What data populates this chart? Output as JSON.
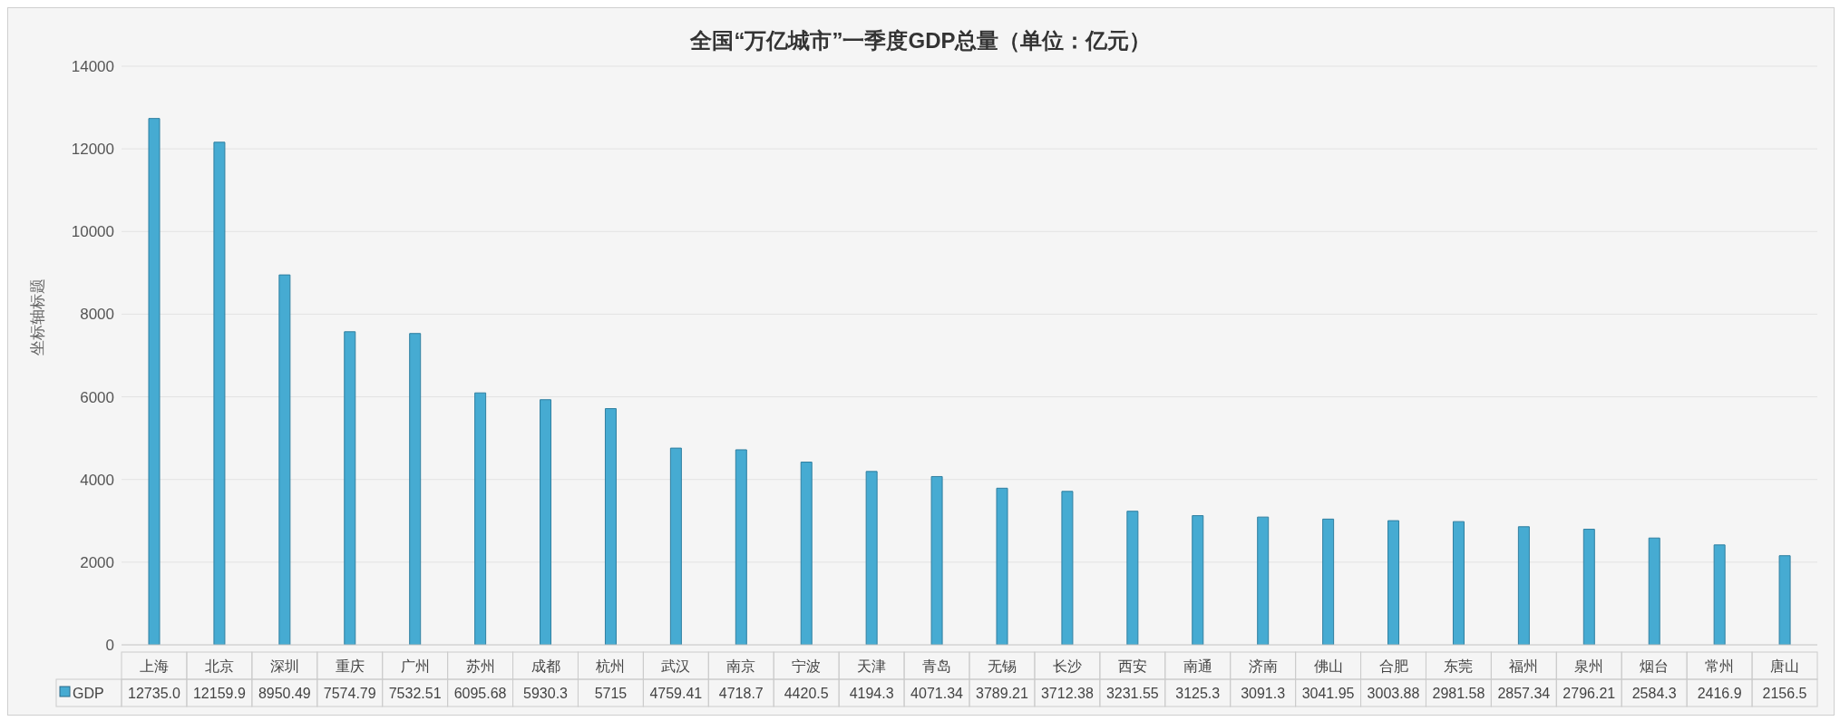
{
  "chart_data": {
    "type": "bar",
    "title": "全国“万亿城市”一季度GDP总量（单位：亿元）",
    "ylabel": "坐标轴标题",
    "categories": [
      "上海",
      "北京",
      "深圳",
      "重庆",
      "广州",
      "苏州",
      "成都",
      "杭州",
      "武汉",
      "南京",
      "宁波",
      "天津",
      "青岛",
      "无锡",
      "长沙",
      "西安",
      "南通",
      "济南",
      "佛山",
      "合肥",
      "东莞",
      "福州",
      "泉州",
      "烟台",
      "常州",
      "唐山"
    ],
    "series": [
      {
        "name": "GDP",
        "color": "#46abd2",
        "values": [
          12735.0,
          12159.9,
          8950.49,
          7574.79,
          7532.51,
          6095.68,
          5930.3,
          5715,
          4759.41,
          4718.7,
          4420.5,
          4194.3,
          4071.34,
          3789.21,
          3712.38,
          3231.55,
          3125.3,
          3091.3,
          3041.95,
          3003.88,
          2981.58,
          2857.34,
          2796.21,
          2584.3,
          2416.9,
          2156.5
        ],
        "value_labels": [
          "12735.0",
          "12159.9",
          "8950.49",
          "7574.79",
          "7532.51",
          "6095.68",
          "5930.3",
          "5715",
          "4759.41",
          "4718.7",
          "4420.5",
          "4194.3",
          "4071.34",
          "3789.21",
          "3712.38",
          "3231.55",
          "3125.3",
          "3091.3",
          "3041.95",
          "3003.88",
          "2981.58",
          "2857.34",
          "2796.21",
          "2584.3",
          "2416.9",
          "2156.5"
        ]
      }
    ],
    "ylim": [
      0,
      14000
    ],
    "yticks": [
      0,
      2000,
      4000,
      6000,
      8000,
      10000,
      12000,
      14000
    ],
    "grid": "y",
    "legend": "bottom"
  }
}
